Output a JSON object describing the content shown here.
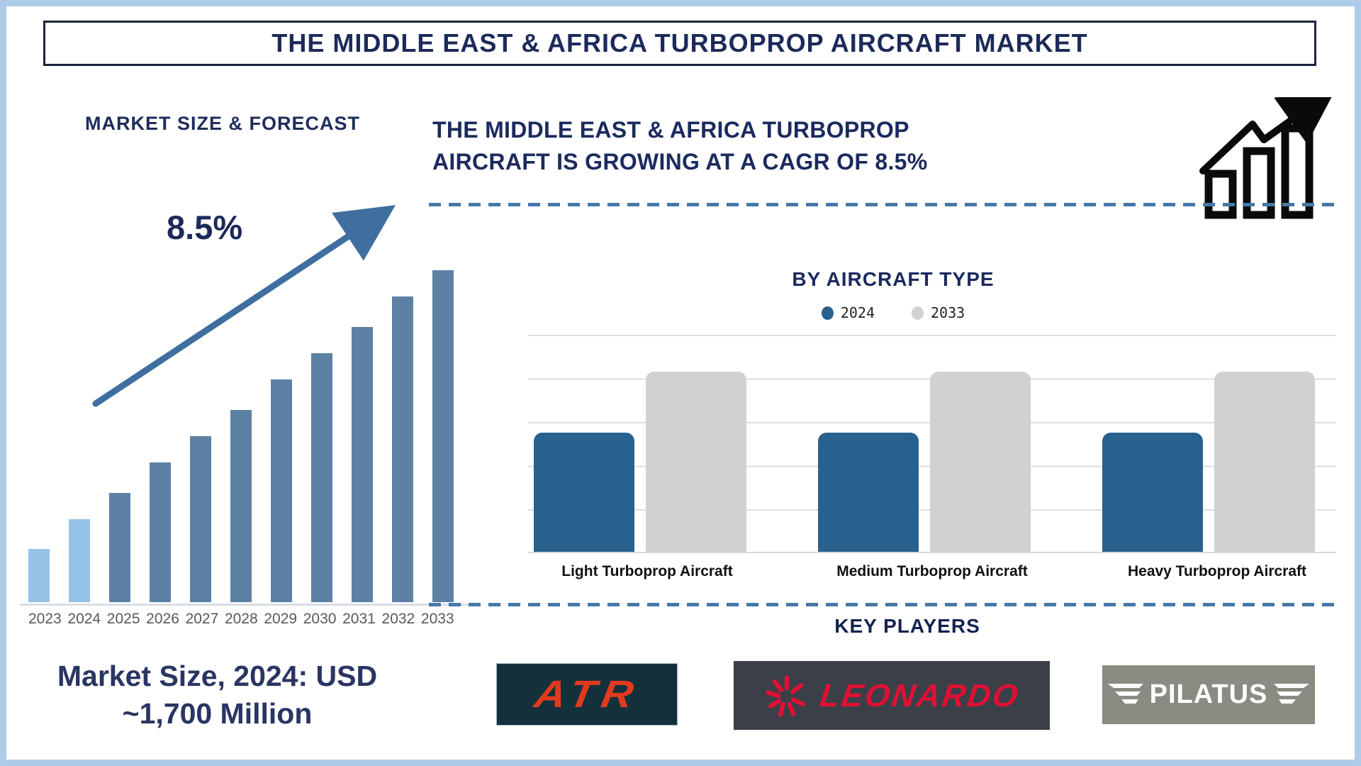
{
  "page": {
    "title": "THE MIDDLE EAST & AFRICA TURBOPROP AIRCRAFT MARKET"
  },
  "left_panel": {
    "heading": "MARKET SIZE & FORECAST",
    "cagr_annotation": "8.5%",
    "market_size_note": "Market Size, 2024: USD ~1,700 Million",
    "market_size_line1": "Market Size, 2024: USD",
    "market_size_line2": "~1,700 Million"
  },
  "right_panel": {
    "growth_statement": "THE MIDDLE EAST & AFRICA TURBOPROP AIRCRAFT IS GROWING AT A CAGR OF 8.5%",
    "section_heading": "BY AIRCRAFT TYPE",
    "key_players_heading": "KEY PLAYERS",
    "key_players": [
      "ATR",
      "LEONARDO",
      "PILATUS"
    ]
  },
  "icons": {
    "growth_chart": "growth-chart-icon",
    "leonardo_starburst": "leonardo-starburst-icon",
    "pilatus_wings": "pilatus-wings-icon"
  },
  "colors": {
    "navy_text": "#1c2a5a",
    "forecast_bar_recent": "#97c2e8",
    "forecast_bar_future": "#5d81a4",
    "trend_arrow": "#3e6f9e",
    "series_2024_blue": "#29618e",
    "series_2033_gray": "#d1d1d1",
    "dashed_divider": "#4678a8",
    "atr_red": "#e23a1e",
    "atr_bg": "#14303b",
    "leonardo_red": "#de1135",
    "leonardo_bg": "#3a3f48",
    "pilatus_bg": "#8a8b82"
  },
  "chart_data": [
    {
      "name": "market_size_forecast",
      "type": "bar",
      "title": "MARKET SIZE & FORECAST",
      "categories": [
        "2023",
        "2024",
        "2025",
        "2026",
        "2027",
        "2028",
        "2029",
        "2030",
        "2031",
        "2032",
        "2033"
      ],
      "values": [
        16,
        25,
        33,
        42,
        50,
        58,
        67,
        75,
        83,
        92,
        100
      ],
      "values_unit": "relative bar height, % of tallest bar (illustrative; no value axis shown)",
      "known_point": {
        "year": "2024",
        "value_usd_million": 1700
      },
      "annotation": {
        "text": "8.5%",
        "meaning": "CAGR trend arrow"
      },
      "xlabel": "",
      "ylabel": "",
      "grid": false,
      "highlight_first_n": 2,
      "bar_color_recent": "#97c2e8",
      "bar_color_forecast": "#5d81a4"
    },
    {
      "name": "by_aircraft_type",
      "type": "bar",
      "title": "BY AIRCRAFT TYPE",
      "categories": [
        "Light Turboprop Aircraft",
        "Medium Turboprop Aircraft",
        "Heavy Turboprop Aircraft"
      ],
      "series": [
        {
          "name": "2024",
          "values": [
            55,
            55,
            55
          ],
          "color": "#29618e"
        },
        {
          "name": "2033",
          "values": [
            83,
            83,
            83
          ],
          "color": "#d1d1d1"
        }
      ],
      "values_unit": "relative bar height, % of plot height (illustrative; no value axis shown)",
      "legend_position": "top",
      "grid": true,
      "xlabel": "",
      "ylabel": ""
    }
  ]
}
